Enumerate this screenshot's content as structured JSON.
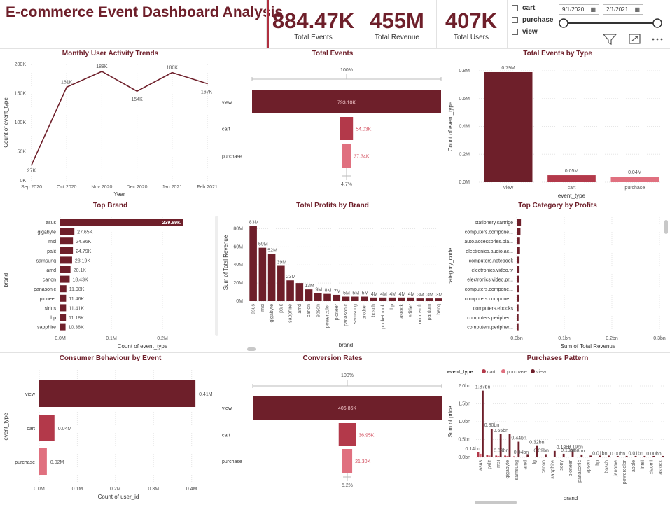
{
  "header": {
    "title": "E-commerce Event Dashboard Analysis"
  },
  "kpis": [
    {
      "value": "884.47K",
      "label": "Total Events"
    },
    {
      "value": "455M",
      "label": "Total Revenue"
    },
    {
      "value": "407K",
      "label": "Total Users"
    }
  ],
  "filters": {
    "checkboxes": [
      "cart",
      "purchase",
      "view"
    ],
    "date_start": "9/1/2020",
    "date_end": "2/1/2021"
  },
  "colors": {
    "dark": "#6e1f2a",
    "mid": "#b3394a",
    "light": "#e0707f"
  },
  "chart_data": [
    {
      "id": "monthly",
      "type": "line",
      "title": "Monthly User Activity Trends",
      "xlabel": "Year",
      "ylabel": "Count of event_type",
      "categories": [
        "Sep 2020",
        "Oct 2020",
        "Nov 2020",
        "Dec 2020",
        "Jan 2021",
        "Feb 2021"
      ],
      "values": [
        27,
        161,
        188,
        154,
        186,
        167
      ],
      "data_labels": [
        "27K",
        "161K",
        "188K",
        "154K",
        "186K",
        "167K"
      ],
      "y_ticks": [
        "0K",
        "50K",
        "100K",
        "150K",
        "200K"
      ],
      "ylim": [
        0,
        200
      ]
    },
    {
      "id": "total_events",
      "type": "bar",
      "title": "Total Events",
      "categories": [
        "view",
        "cart",
        "purchase"
      ],
      "values": [
        793.1,
        54.03,
        37.34
      ],
      "data_labels": [
        "793.10K",
        "54.03K",
        "37.34K"
      ],
      "top_label": "100%",
      "bottom_label": "4.7%"
    },
    {
      "id": "events_by_type",
      "type": "bar",
      "title": "Total Events by Type",
      "xlabel": "event_type",
      "ylabel": "Count of event_type",
      "categories": [
        "view",
        "cart",
        "purchase"
      ],
      "values": [
        0.79,
        0.05,
        0.04
      ],
      "data_labels": [
        "0.79M",
        "0.05M",
        "0.04M"
      ],
      "y_ticks": [
        "0.0M",
        "0.2M",
        "0.4M",
        "0.6M",
        "0.8M"
      ],
      "ylim": [
        0,
        0.8
      ]
    },
    {
      "id": "top_brand",
      "type": "bar",
      "title": "Top Brand",
      "xlabel": "Count of event_type",
      "ylabel": "brand",
      "categories": [
        "asus",
        "gigabyte",
        "msi",
        "palit",
        "samsung",
        "amd",
        "canon",
        "panasonic",
        "pioneer",
        "sirius",
        "hp",
        "sapphire"
      ],
      "values": [
        239.89,
        27.65,
        24.86,
        24.79,
        23.19,
        20.1,
        18.43,
        11.98,
        11.46,
        11.41,
        11.18,
        10.38
      ],
      "data_labels": [
        "239.89K",
        "27.65K",
        "24.86K",
        "24.79K",
        "23.19K",
        "20.1K",
        "18.43K",
        "11.98K",
        "11.46K",
        "11.41K",
        "11.18K",
        "10.38K"
      ],
      "x_ticks": [
        "0.0M",
        "0.1M",
        "0.2M"
      ],
      "xlim": [
        0,
        300
      ]
    },
    {
      "id": "profits_by_brand",
      "type": "bar",
      "title": "Total Profits by Brand",
      "xlabel": "brand",
      "ylabel": "Sum of Total Revenue",
      "categories": [
        "asus",
        "msi",
        "gigabyte",
        "palit",
        "sapphire",
        "amd",
        "canon",
        "epson",
        "powercolor",
        "pioneer",
        "panasonic",
        "samsung",
        "brother",
        "bosch",
        "pocketbook",
        "hp",
        "asrock",
        "edifier",
        "microsoft",
        "pantum",
        "benq"
      ],
      "values": [
        83,
        59,
        52,
        39,
        23,
        20,
        13,
        9,
        8,
        7,
        5,
        5,
        5,
        4,
        4,
        4,
        4,
        4,
        3,
        3,
        3
      ],
      "data_labels": [
        "83M",
        "59M",
        "52M",
        "39M",
        "23M",
        "",
        "13M",
        "9M",
        "8M",
        "7M",
        "5M",
        "5M",
        "5M",
        "4M",
        "4M",
        "4M",
        "4M",
        "4M",
        "3M",
        "3M",
        "3M"
      ],
      "y_ticks": [
        "0M",
        "20M",
        "40M",
        "60M",
        "80M"
      ],
      "ylim": [
        0,
        85
      ]
    },
    {
      "id": "top_category",
      "type": "bar",
      "title": "Top Category by Profits",
      "xlabel": "Sum of Total Revenue",
      "ylabel": "category_code",
      "categories": [
        "stationery.cartrige",
        "computers.compone...",
        "auto.accessories.pla...",
        "electronics.audio.ac...",
        "computers.notebook",
        "electronics.video.tv",
        "electronics.video.pr...",
        "computers.compone...",
        "computers.compone...",
        "computers.ebooks",
        "computers.peripher...",
        "computers.peripher..."
      ],
      "values": [
        0.009,
        0.008,
        0.007,
        0.007,
        0.006,
        0.006,
        0.005,
        0.005,
        0.005,
        0.004,
        0.004,
        0.004
      ],
      "x_ticks": [
        "0.0bn",
        "0.1bn",
        "0.2bn",
        "0.3bn"
      ],
      "xlim": [
        0,
        0.3
      ]
    },
    {
      "id": "consumer_behaviour",
      "type": "bar",
      "title": "Consumer Behaviour by Event",
      "xlabel": "Count of user_id",
      "ylabel": "event_type",
      "categories": [
        "view",
        "cart",
        "purchase"
      ],
      "values": [
        0.41,
        0.04,
        0.02
      ],
      "data_labels": [
        "0.41M",
        "0.04M",
        "0.02M"
      ],
      "x_ticks": [
        "0.0M",
        "0.1M",
        "0.2M",
        "0.3M",
        "0.4M"
      ],
      "xlim": [
        0,
        0.43
      ]
    },
    {
      "id": "conversion",
      "type": "bar",
      "title": "Conversion Rates",
      "categories": [
        "view",
        "cart",
        "purchase"
      ],
      "values": [
        406.86,
        36.95,
        21.3
      ],
      "data_labels": [
        "406.86K",
        "36.95K",
        "21.30K"
      ],
      "top_label": "100%",
      "bottom_label": "5.2%"
    },
    {
      "id": "purchases_pattern",
      "type": "bar",
      "title": "Purchases Pattern",
      "xlabel": "brand",
      "ylabel": "Sum of price",
      "legend_title": "event_type",
      "legend_position": "top-left",
      "categories": [
        "asus",
        "palit",
        "msi",
        "gigabyte",
        "samsung",
        "amd",
        "lg",
        "canon",
        "sapphire",
        "sony",
        "pioneer",
        "panasonic",
        "epson",
        "hp",
        "bosch",
        "janome",
        "powercolor",
        "apple",
        "intel",
        "xiaomi",
        "asrock"
      ],
      "series": [
        {
          "name": "cart",
          "values": [
            0.14,
            0.06,
            0.05,
            0.05,
            0.03,
            0.02,
            0.02,
            0.02,
            0.01,
            0.01,
            0.01,
            0.01,
            0.01,
            0.01,
            0.01,
            0.01,
            0.01,
            0.01,
            0.01,
            0.01,
            0.01
          ]
        },
        {
          "name": "purchase",
          "values": [
            0.1,
            0.05,
            0.04,
            0.04,
            0.02,
            0.02,
            0.01,
            0.01,
            0.01,
            0.01,
            0.01,
            0.01,
            0.01,
            0.01,
            0.01,
            0.01,
            0.01,
            0.01,
            0.01,
            0.01,
            0.01
          ]
        },
        {
          "name": "view",
          "values": [
            1.87,
            0.8,
            0.65,
            0.65,
            0.44,
            0.09,
            0.32,
            0.09,
            0.18,
            0.1,
            0.19,
            0.08,
            0.05,
            0.05,
            0.05,
            0.04,
            0.04,
            0.04,
            0.04,
            0.04,
            0.04
          ]
        }
      ],
      "data_labels": [
        "0.14bn",
        "1.87bn",
        "0.80bn",
        "0.65bn",
        "0.09bn",
        "0.44bn",
        "0.04bn",
        "0.32bn",
        "0.09bn",
        "0.18bn",
        "0.10bn",
        "0.19bn",
        "0.08bn",
        "0.01bn",
        "0.00bn",
        "0.01bn",
        "0.00bn"
      ],
      "y_ticks": [
        "0.0bn",
        "0.5bn",
        "1.0bn",
        "1.5bn",
        "2.0bn"
      ],
      "ylim": [
        0,
        2.0
      ]
    }
  ]
}
